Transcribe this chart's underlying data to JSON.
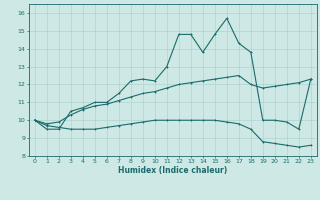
{
  "xlabel": "Humidex (Indice chaleur)",
  "ylabel": "",
  "xlim": [
    -0.5,
    23.5
  ],
  "ylim": [
    8,
    16.5
  ],
  "yticks": [
    8,
    9,
    10,
    11,
    12,
    13,
    14,
    15,
    16
  ],
  "xticks": [
    0,
    1,
    2,
    3,
    4,
    5,
    6,
    7,
    8,
    9,
    10,
    11,
    12,
    13,
    14,
    15,
    16,
    17,
    18,
    19,
    20,
    21,
    22,
    23
  ],
  "bg_color": "#cde8e5",
  "grid_color": "#aed4d0",
  "line_color": "#1a6b6b",
  "main_y": [
    10.0,
    9.5,
    9.5,
    10.5,
    10.7,
    11.0,
    11.0,
    11.5,
    12.2,
    12.3,
    12.2,
    13.0,
    14.8,
    14.8,
    13.8,
    14.8,
    15.7,
    14.3,
    13.8,
    10.0,
    10.0,
    9.9,
    9.5,
    12.3
  ],
  "upper_y": [
    10.0,
    9.8,
    9.9,
    10.3,
    10.6,
    10.8,
    10.9,
    11.1,
    11.3,
    11.5,
    11.6,
    11.8,
    12.0,
    12.1,
    12.2,
    12.3,
    12.4,
    12.5,
    12.0,
    11.8,
    11.9,
    12.0,
    12.1,
    12.3
  ],
  "lower_y": [
    10.0,
    9.7,
    9.6,
    9.5,
    9.5,
    9.5,
    9.6,
    9.7,
    9.8,
    9.9,
    10.0,
    10.0,
    10.0,
    10.0,
    10.0,
    10.0,
    9.9,
    9.8,
    9.5,
    8.8,
    8.7,
    8.6,
    8.5,
    8.6
  ],
  "figsize": [
    3.2,
    2.0
  ],
  "dpi": 100
}
